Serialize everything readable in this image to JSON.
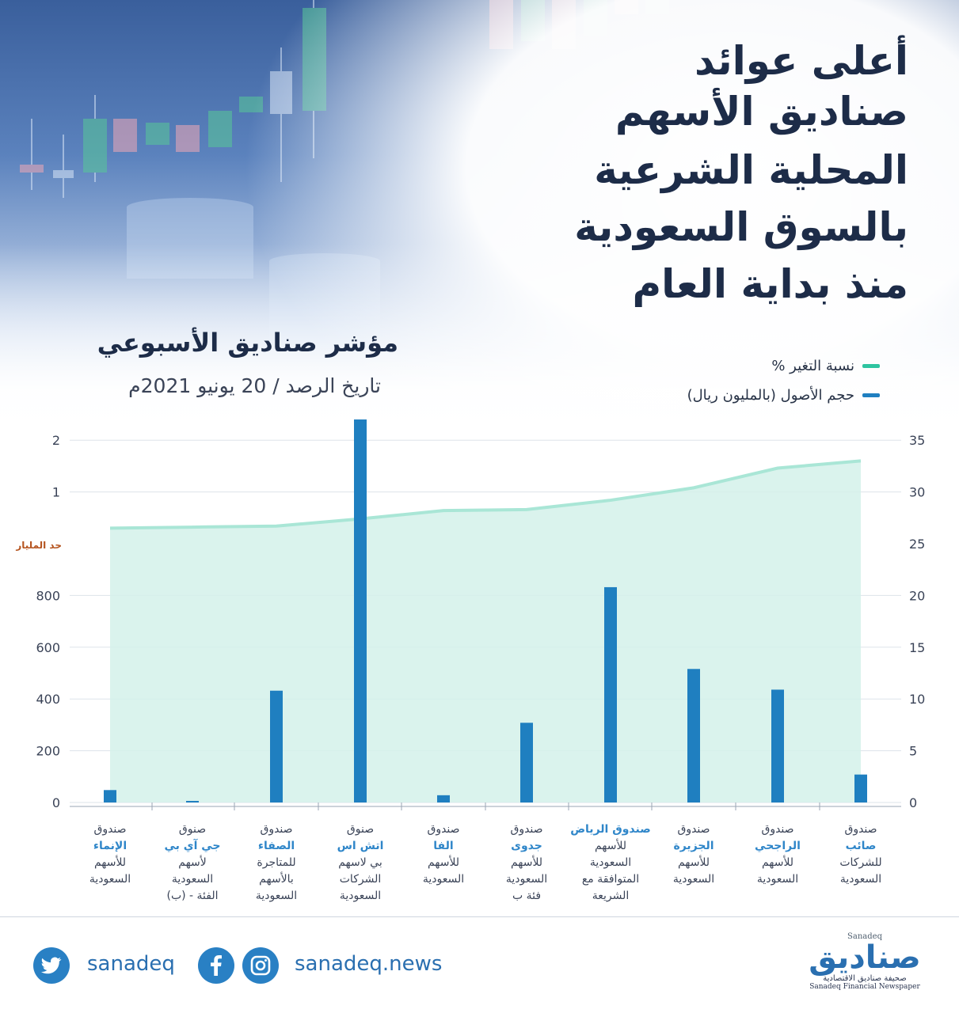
{
  "title_lines": [
    "أعلى عوائد",
    "صناديق الأسهم",
    "المحلية الشرعية",
    "بالسوق السعودية",
    "منذ بداية العام"
  ],
  "subtitle": "مؤشر صناديق الأسبوعي",
  "date_line": "تاريخ الرصد / 20 يونيو 2021م",
  "legend": [
    {
      "label": "نسبة التغير %",
      "color": "#2ec4a0"
    },
    {
      "label": "حجم الأصول (بالمليون ريال)",
      "color": "#1f7fc0"
    }
  ],
  "limit_label": "حد المليار",
  "categories": [
    {
      "lines": [
        "صندوق",
        "الإنماء",
        "للأسهم",
        "السعودية"
      ],
      "highlight": 1
    },
    {
      "lines": [
        "صنوق",
        "جي آي بي",
        "لأسهم",
        "السعودية",
        "الفئة - (ب)"
      ],
      "highlight": 1
    },
    {
      "lines": [
        "صندوق",
        "الصفاء",
        "للمتاجرة",
        "بالأسهم",
        "السعودية"
      ],
      "highlight": 1
    },
    {
      "lines": [
        "صنوق",
        "اتش اس",
        "بي لاسهم",
        "الشركات",
        "السعودية"
      ],
      "highlight": 1
    },
    {
      "lines": [
        "صندوق",
        "الفا",
        "للأسهم",
        "السعودية"
      ],
      "highlight": 1
    },
    {
      "lines": [
        "صندوق",
        "جدوى",
        "للأسهم",
        "السعودية",
        "فئة ب"
      ],
      "highlight": 1
    },
    {
      "lines": [
        "صندوق الرياض",
        "للأسهم",
        "السعودية",
        "المتوافقة مع",
        "الشريعة"
      ],
      "highlight": 0
    },
    {
      "lines": [
        "صندوق",
        "الجزيرة",
        "للأسهم",
        "السعودية"
      ],
      "highlight": 1
    },
    {
      "lines": [
        "صندوق",
        "الراجحي",
        "للأسهم",
        "السعودية"
      ],
      "highlight": 1
    },
    {
      "lines": [
        "صندوق",
        "صائب",
        "للشركات",
        "السعودية"
      ],
      "highlight": 1
    }
  ],
  "chart_data": {
    "type": "bar",
    "left_axis_ticks": [
      "0",
      "200",
      "400",
      "600",
      "800",
      "حد المليار",
      "1",
      "2"
    ],
    "right_axis_ticks": [
      "0",
      "5",
      "10",
      "15",
      "20",
      "25",
      "30",
      "35"
    ],
    "right_axis_range": [
      0,
      35
    ],
    "series": [
      {
        "name": "حجم الأصول (بالمليون ريال)",
        "type": "bar",
        "values": [
          1.2,
          0.1,
          10.8,
          37,
          0.7,
          7.7,
          20.8,
          12.9,
          10.9,
          2.7
        ]
      },
      {
        "name": "نسبة التغير %",
        "type": "area",
        "values": [
          26.5,
          26.6,
          26.7,
          27.4,
          28.2,
          28.3,
          29.2,
          30.4,
          32.3,
          33.0
        ]
      }
    ]
  },
  "footer": {
    "twitter_handle": "sanadeq",
    "web_handle": "sanadeq.news",
    "brand_latin": "Sanadeq",
    "brand_name": "صناديق",
    "brand_tag_ar": "صحيفة صناديق الاقتصادية",
    "brand_tag_en": "Sanadeq Financial Newspaper"
  }
}
